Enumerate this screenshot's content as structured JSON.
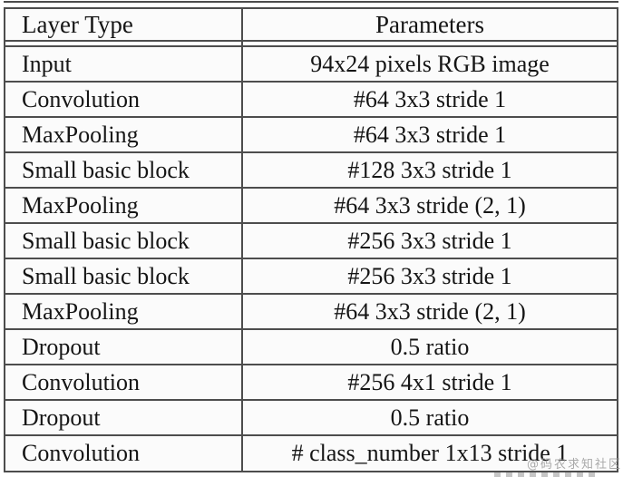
{
  "table": {
    "columns": [
      {
        "label": "Layer Type"
      },
      {
        "label": "Parameters"
      }
    ],
    "rows": [
      {
        "layer": "Input",
        "params": "94x24 pixels RGB image"
      },
      {
        "layer": "Convolution",
        "params": "#64 3x3 stride 1"
      },
      {
        "layer": "MaxPooling",
        "params": "#64 3x3 stride 1"
      },
      {
        "layer": "Small basic block",
        "params": "#128 3x3 stride 1"
      },
      {
        "layer": "MaxPooling",
        "params": "#64 3x3 stride (2, 1)"
      },
      {
        "layer": "Small basic block",
        "params": "#256 3x3 stride 1"
      },
      {
        "layer": "Small basic block",
        "params": "#256 3x3 stride 1"
      },
      {
        "layer": "MaxPooling",
        "params": "#64 3x3 stride (2, 1)"
      },
      {
        "layer": "Dropout",
        "params": "0.5 ratio"
      },
      {
        "layer": "Convolution",
        "params": "#256 4x1 stride 1"
      },
      {
        "layer": "Dropout",
        "params": "0.5 ratio"
      },
      {
        "layer": "Convolution",
        "params": "# class_number 1x13 stride 1"
      }
    ]
  },
  "watermark": "@码农求知社区",
  "colors": {
    "border": "#4d4d4d",
    "text": "#151515",
    "cell_background": "#fbfbfb",
    "page_background": "#ffffff",
    "watermark": "#9b9b9b"
  }
}
